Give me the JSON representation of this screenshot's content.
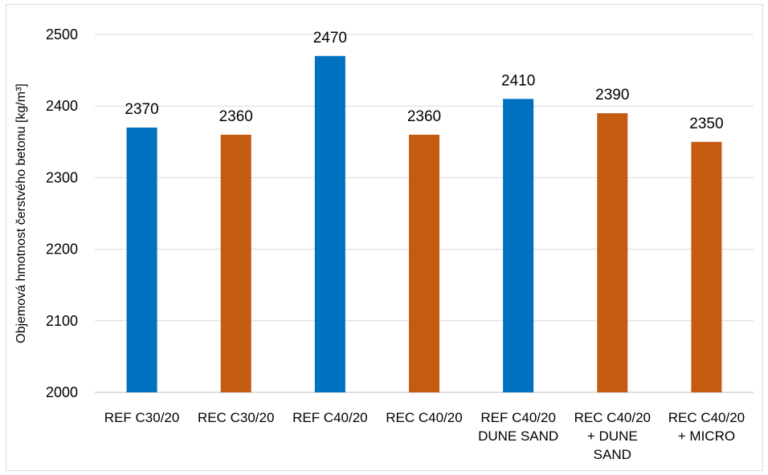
{
  "chart_data": {
    "type": "bar",
    "categories": [
      [
        "REF C30/20"
      ],
      [
        "REC C30/20"
      ],
      [
        "REF C40/20"
      ],
      [
        "REC C40/20"
      ],
      [
        "REF C40/20",
        "DUNE SAND"
      ],
      [
        "REC C40/20",
        "+ DUNE",
        "SAND"
      ],
      [
        "REC C40/20",
        "+ MICRO"
      ]
    ],
    "values": [
      2370,
      2360,
      2470,
      2360,
      2410,
      2390,
      2350
    ],
    "data_labels": [
      "2370",
      "2360",
      "2470",
      "2360",
      "2410",
      "2390",
      "2350"
    ],
    "bar_colors": [
      "#0070C0",
      "#C55A11",
      "#0070C0",
      "#C55A11",
      "#0070C0",
      "#C55A11",
      "#C55A11"
    ],
    "title": "",
    "xlabel": "",
    "ylabel": "Objemová hmotnost čerstvého betonu [kg/m³]",
    "ylim": [
      2000,
      2500
    ],
    "yticks": [
      "2000",
      "2100",
      "2200",
      "2300",
      "2400",
      "2500"
    ],
    "grid": true,
    "gridline_color": "#d9d9d9",
    "legend": "none"
  }
}
